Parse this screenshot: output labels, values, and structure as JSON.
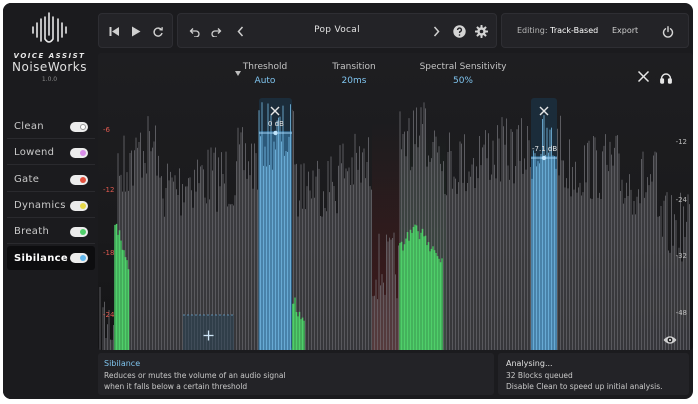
{
  "brand": {
    "line1": "VOICE ASSIST",
    "name": "NoiseWorks",
    "version": "1.0.0"
  },
  "sidebar": {
    "items": [
      {
        "label": "Clean",
        "dot": "#ffffff"
      },
      {
        "label": "Lowend",
        "dot": "#d88ee8"
      },
      {
        "label": "Gate",
        "dot": "#e4523f"
      },
      {
        "label": "Dynamics",
        "dot": "#e6d84a"
      },
      {
        "label": "Breath",
        "dot": "#4fcf6a"
      },
      {
        "label": "Sibilance",
        "dot": "#62b8ee"
      }
    ],
    "active": "Sibilance"
  },
  "toolbar": {
    "preset": "Pop Vocal",
    "editing_label": "Editing:",
    "editing_value": "Track-Based",
    "export_label": "Export"
  },
  "params": {
    "threshold": {
      "label": "Threshold",
      "value": "Auto"
    },
    "transition": {
      "label": "Transition",
      "value": "20ms"
    },
    "sensitivity": {
      "label": "Spectral Sensitivity",
      "value": "50%"
    }
  },
  "scale_left": [
    "-6",
    "-12",
    "-18",
    "-24"
  ],
  "scale_right": [
    "-12",
    "-24",
    "-32",
    "-48"
  ],
  "bands": [
    {
      "label": "0 dB"
    },
    {
      "label": "-7.1 dB"
    }
  ],
  "info": {
    "title": "Sibilance",
    "line1": "Reduces or mutes the volume of an audio signal",
    "line2": "when it falls below a certain threshold"
  },
  "status": {
    "title": "Analysing...",
    "line1": "32 Blocks queued",
    "line2": "Disable Clean to speed up initial analysis."
  },
  "colors": {
    "accent": "#62b8ee",
    "breath": "#4fcf6a",
    "gate": "#e4523f"
  }
}
